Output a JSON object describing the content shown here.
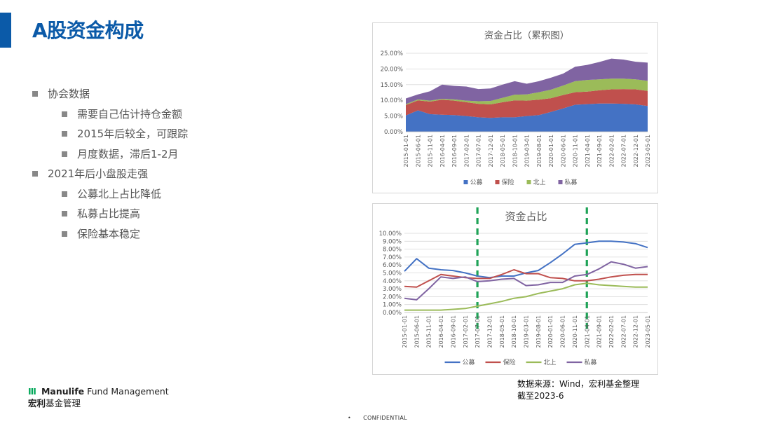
{
  "title": "A股资金构成",
  "bullets": [
    {
      "text": "协会数据",
      "level": 1
    },
    {
      "text": "需要自己估计持仓金额",
      "level": 2
    },
    {
      "text": "2015年后较全，可跟踪",
      "level": 2
    },
    {
      "text": "月度数据，滞后1-2月",
      "level": 2
    },
    {
      "text": "2021年后小盘股走强",
      "level": 1
    },
    {
      "text": "公募北上占比降低",
      "level": 2
    },
    {
      "text": "私募占比提高",
      "level": 2
    },
    {
      "text": "保险基本稳定",
      "level": 2
    }
  ],
  "source": {
    "line1": "数据来源：Wind，宏利基金整理",
    "line2": "截至2023-6"
  },
  "logo": {
    "mark": "III",
    "brand": "Manulife",
    "brand_rest": "Fund Management",
    "cn_bold": "宏利",
    "cn_rest": "基金管理"
  },
  "footer": {
    "bullet": "•",
    "text": "CONFIDENTIAL"
  },
  "colors": {
    "公募": "#4472c4",
    "保险": "#c0504d",
    "北上": "#9bbb59",
    "私募": "#8064a2",
    "marker": "#1fa357",
    "title": "#0b5aa8"
  },
  "chart_data": [
    {
      "type": "area",
      "stacked": true,
      "title": "资金占比（累积图）",
      "x": [
        "2015-01-01",
        "2015-06-01",
        "2015-11-01",
        "2016-04-01",
        "2016-09-01",
        "2017-02-01",
        "2017-07-01",
        "2017-12-01",
        "2018-05-01",
        "2018-10-01",
        "2019-03-01",
        "2019-08-01",
        "2020-01-01",
        "2020-06-01",
        "2020-11-01",
        "2021-04-01",
        "2021-09-01",
        "2022-02-01",
        "2022-07-01",
        "2022-12-01",
        "2023-05-01"
      ],
      "ylim": [
        0,
        25
      ],
      "yticks": [
        "0.00%",
        "5.00%",
        "10.00%",
        "15.00%",
        "20.00%",
        "25.00%"
      ],
      "legend": "bottom",
      "series": [
        {
          "name": "公募",
          "values": [
            5.2,
            6.8,
            5.6,
            5.4,
            5.3,
            5.0,
            4.6,
            4.4,
            4.6,
            4.6,
            5.0,
            5.3,
            6.3,
            7.4,
            8.6,
            8.8,
            9.0,
            9.0,
            8.9,
            8.7,
            8.2
          ]
        },
        {
          "name": "保险",
          "values": [
            3.3,
            3.2,
            4.0,
            4.8,
            4.6,
            4.4,
            4.3,
            4.3,
            4.8,
            5.4,
            4.9,
            4.9,
            4.4,
            4.3,
            4.0,
            4.0,
            4.2,
            4.5,
            4.7,
            4.8,
            4.8
          ]
        },
        {
          "name": "北上",
          "values": [
            0.3,
            0.3,
            0.3,
            0.3,
            0.4,
            0.5,
            0.8,
            1.1,
            1.4,
            1.8,
            2.0,
            2.4,
            2.7,
            3.0,
            3.5,
            3.7,
            3.5,
            3.4,
            3.3,
            3.2,
            3.2
          ]
        },
        {
          "name": "私募",
          "values": [
            1.8,
            1.6,
            3.0,
            4.5,
            4.3,
            4.5,
            3.9,
            4.0,
            4.2,
            4.3,
            3.4,
            3.5,
            3.8,
            3.8,
            4.6,
            4.8,
            5.5,
            6.4,
            6.1,
            5.6,
            5.8
          ]
        }
      ]
    },
    {
      "type": "line",
      "title": "资金占比",
      "x": [
        "2015-01-01",
        "2015-06-01",
        "2015-11-01",
        "2016-04-01",
        "2016-09-01",
        "2017-02-01",
        "2017-07-01",
        "2017-12-01",
        "2018-05-01",
        "2018-10-01",
        "2019-03-01",
        "2019-08-01",
        "2020-01-01",
        "2020-06-01",
        "2020-11-01",
        "2021-04-01",
        "2021-09-01",
        "2022-02-01",
        "2022-07-01",
        "2022-12-01",
        "2023-05-01"
      ],
      "ylim": [
        0,
        10
      ],
      "yticks": [
        "0.00%",
        "1.00%",
        "2.00%",
        "3.00%",
        "4.00%",
        "5.00%",
        "6.00%",
        "7.00%",
        "8.00%",
        "9.00%",
        "10.00%"
      ],
      "legend": "bottom",
      "markers": [
        "2017-07-01",
        "2021-04-01"
      ],
      "series": [
        {
          "name": "公募",
          "values": [
            5.2,
            6.8,
            5.6,
            5.4,
            5.3,
            5.0,
            4.6,
            4.4,
            4.6,
            4.6,
            5.0,
            5.3,
            6.3,
            7.4,
            8.6,
            8.8,
            9.0,
            9.0,
            8.9,
            8.7,
            8.2
          ]
        },
        {
          "name": "保险",
          "values": [
            3.3,
            3.2,
            4.0,
            4.8,
            4.6,
            4.4,
            4.3,
            4.3,
            4.8,
            5.4,
            4.9,
            4.9,
            4.4,
            4.3,
            4.0,
            4.0,
            4.2,
            4.5,
            4.7,
            4.8,
            4.8
          ]
        },
        {
          "name": "北上",
          "values": [
            0.3,
            0.3,
            0.3,
            0.3,
            0.4,
            0.5,
            0.8,
            1.1,
            1.4,
            1.8,
            2.0,
            2.4,
            2.7,
            3.0,
            3.5,
            3.7,
            3.5,
            3.4,
            3.3,
            3.2,
            3.2
          ]
        },
        {
          "name": "私募",
          "values": [
            1.8,
            1.6,
            3.0,
            4.5,
            4.3,
            4.5,
            3.9,
            4.0,
            4.2,
            4.3,
            3.4,
            3.5,
            3.8,
            3.8,
            4.6,
            4.8,
            5.5,
            6.4,
            6.1,
            5.6,
            5.8
          ]
        }
      ]
    }
  ]
}
